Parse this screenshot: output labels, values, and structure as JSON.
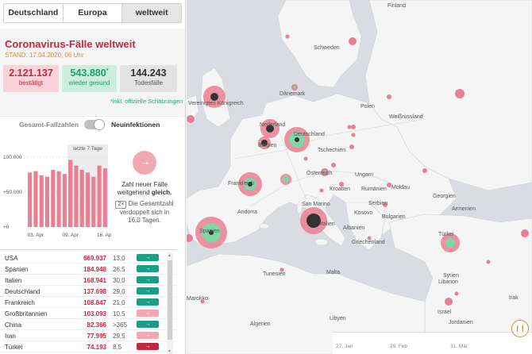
{
  "tabs": [
    {
      "label": "Deutschland",
      "active": false
    },
    {
      "label": "Europa",
      "active": false
    },
    {
      "label": "weltweit",
      "active": true
    }
  ],
  "panel": {
    "title": "Coronavirus-Fälle weltweit",
    "stand_label": "STAND:",
    "stand_date": "17.04.2020, 06 Uhr"
  },
  "stats": {
    "confirmed": {
      "value": "2.121.137",
      "label": "bestätigt"
    },
    "recovered": {
      "value": "543.880",
      "sup": "*",
      "label": "wieder gesund"
    },
    "deaths": {
      "value": "144.243",
      "label": "Todesfälle"
    },
    "footnote": "*inkl. offizielle Schätzungen"
  },
  "toggle": {
    "left": "Gesamt-Fallzahlen",
    "right": "Neuinfektionen",
    "state": "right"
  },
  "chart_data": {
    "type": "bar",
    "title": "",
    "annotation": "letzte 7 Tage",
    "yticks": [
      "100.000",
      "+50.000",
      "+0"
    ],
    "ylim": [
      0,
      100000
    ],
    "xticks": [
      "03. Apr",
      "09. Apr",
      "16. Apr"
    ],
    "values": [
      78000,
      80000,
      74000,
      72000,
      82000,
      80000,
      76000,
      96000,
      88000,
      82000,
      78000,
      72000,
      88000,
      84000
    ],
    "highlight_last": 7,
    "colors": {
      "bar": "#e97f93",
      "highlight_bg": "#ececec"
    }
  },
  "trend": {
    "arrow": "→",
    "text_a": "Zahl neuer Fälle weitgehend",
    "text_b": "gleich.",
    "badge": "2×",
    "text_c": "Die Gesamtzahl verdoppelt sich in 16,0 Tagen."
  },
  "table": [
    {
      "country": "USA",
      "cases": "669.937",
      "doubling": "13,0",
      "trend": "→",
      "color": "#1c9e86"
    },
    {
      "country": "Spanien",
      "cases": "184.948",
      "doubling": "26,5",
      "trend": "→",
      "color": "#1c9e86"
    },
    {
      "country": "Italien",
      "cases": "168.941",
      "doubling": "30,0",
      "trend": "→",
      "color": "#1c9e86"
    },
    {
      "country": "Deutschland",
      "cases": "137.698",
      "doubling": "29,0",
      "trend": "→",
      "color": "#1c9e86"
    },
    {
      "country": "Frankreich",
      "cases": "108.847",
      "doubling": "21,0",
      "trend": "→",
      "color": "#1c9e86"
    },
    {
      "country": "Großbritannien",
      "cases": "103.093",
      "doubling": "10,5",
      "trend": "→",
      "color": "#f2a8b3"
    },
    {
      "country": "China",
      "cases": "82.366",
      "doubling": ">365",
      "trend": "→",
      "color": "#1c9e86"
    },
    {
      "country": "Iran",
      "cases": "77.995",
      "doubling": "29,5",
      "trend": "→",
      "color": "#f2a8b3"
    },
    {
      "country": "Türkei",
      "cases": "74.193",
      "doubling": "8,5",
      "trend": "→",
      "color": "#c22840"
    }
  ],
  "map": {
    "places": [
      {
        "name": "Finland",
        "t": "Finland"
      },
      {
        "name": "Schweden",
        "t": "Schweden"
      },
      {
        "name": "Dänemark",
        "t": "Dänemark"
      },
      {
        "name": "Vereinigtes Königreich",
        "t": "Vereinigtes Königreich"
      },
      {
        "name": "Polen",
        "t": "Polen"
      },
      {
        "name": "Weißrussland",
        "t": "Weißrussland"
      },
      {
        "name": "Nederland",
        "t": "Nederland"
      },
      {
        "name": "Belgien",
        "t": "Belgien"
      },
      {
        "name": "Deutschland",
        "t": "Deutschland"
      },
      {
        "name": "Tschechien",
        "t": "Tschechien"
      },
      {
        "name": "Österreich",
        "t": "Österreich"
      },
      {
        "name": "Ungarn",
        "t": "Ungarn"
      },
      {
        "name": "Frankreich",
        "t": "Frankreich"
      },
      {
        "name": "Moldau",
        "t": "Moldau"
      },
      {
        "name": "Rumänien",
        "t": "Rumänien"
      },
      {
        "name": "Kroatien",
        "t": "Kroatien"
      },
      {
        "name": "Serbien",
        "t": "Serbien"
      },
      {
        "name": "Andorra",
        "t": "Andorra"
      },
      {
        "name": "San Marino",
        "t": "San Marino"
      },
      {
        "name": "Kosovo",
        "t": "Kosovo"
      },
      {
        "name": "Bulgarien",
        "t": "Bulgarien"
      },
      {
        "name": "Spanien",
        "t": "Spanien"
      },
      {
        "name": "Italien",
        "t": "Italien"
      },
      {
        "name": "Albanien",
        "t": "Albanien"
      },
      {
        "name": "Griechenland",
        "t": "Griechenland"
      },
      {
        "name": "Türkei",
        "t": "Türkei"
      },
      {
        "name": "Georgien",
        "t": "Georgien"
      },
      {
        "name": "Armenien",
        "t": "Armenien"
      },
      {
        "name": "Tunesien",
        "t": "Tunesien"
      },
      {
        "name": "Malta",
        "t": "Malta"
      },
      {
        "name": "Syrien",
        "t": "Syrien"
      },
      {
        "name": "Libanon",
        "t": "Libanon"
      },
      {
        "name": "Irak",
        "t": "Irak"
      },
      {
        "name": "Marokko",
        "t": "Marokko"
      },
      {
        "name": "Algerien",
        "t": "Algerien"
      },
      {
        "name": "Libyen",
        "t": "Libyen"
      },
      {
        "name": "Jordanien",
        "t": "Jordanien"
      },
      {
        "name": "Israel",
        "t": "Israel"
      }
    ]
  },
  "timeline": {
    "ticks": [
      "27. Jan",
      "29. Feb",
      "31. Mär"
    ],
    "play": "❙❙"
  }
}
